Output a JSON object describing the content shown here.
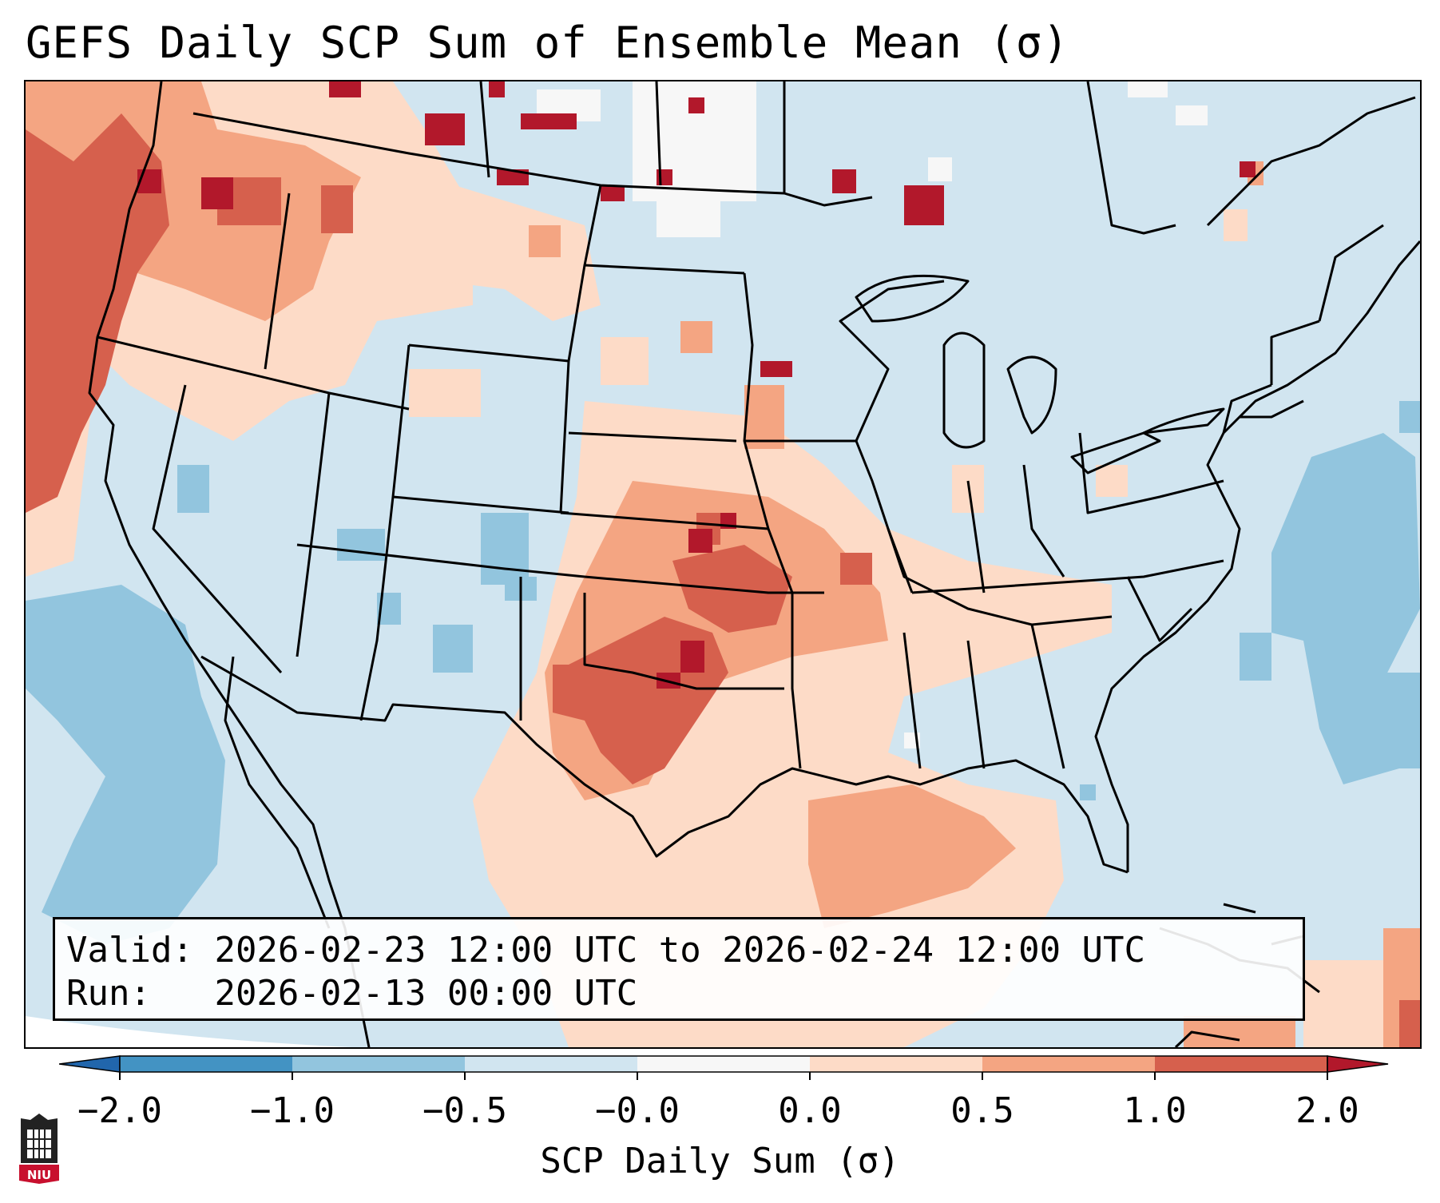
{
  "title": "GEFS Daily SCP Sum of Ensemble Mean (σ)",
  "info": {
    "valid_label": "Valid:",
    "valid_value": "2026-02-23 12:00 UTC to 2026-02-24 12:00 UTC",
    "run_label": "Run:",
    "run_value": "2026-02-13 00:00 UTC"
  },
  "colorbar": {
    "label": "SCP Daily Sum (σ)",
    "ticks": [
      "−2.0",
      "−1.0",
      "−0.5",
      "−0.0",
      "0.0",
      "0.5",
      "1.0",
      "2.0"
    ],
    "bins": [
      {
        "range": "< -2.0",
        "color": "#2166ac"
      },
      {
        "range": "-2.0 to -1.0",
        "color": "#4393c3"
      },
      {
        "range": "-1.0 to -0.5",
        "color": "#92c5de"
      },
      {
        "range": "-0.5 to -0.0",
        "color": "#d1e5f0"
      },
      {
        "range": "-0.0 to 0.0",
        "color": "#f7f7f7"
      },
      {
        "range": "0.0 to 0.5",
        "color": "#fddbc7"
      },
      {
        "range": "0.5 to 1.0",
        "color": "#f4a582"
      },
      {
        "range": "1.0 to 2.0",
        "color": "#d6604d"
      },
      {
        "range": "> 2.0",
        "color": "#b2182b"
      }
    ]
  },
  "logo": {
    "text": "NIU",
    "icon": "niu-logo-icon",
    "color": "#c8102e"
  }
}
